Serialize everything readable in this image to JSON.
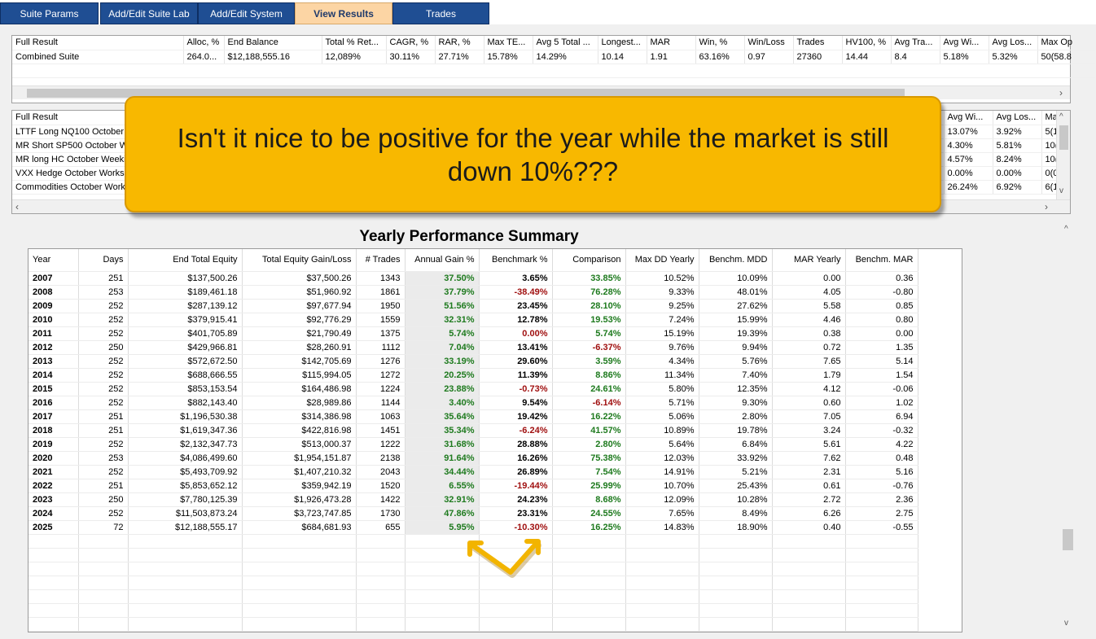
{
  "tabs": [
    "Suite Params",
    "Add/Edit Suite Lab",
    "Add/Edit System",
    "View Results",
    "Trades"
  ],
  "panel1": {
    "headers": [
      "Full Result",
      "Alloc, %",
      "End Balance",
      "Total % Ret...",
      "CAGR, %",
      "RAR, %",
      "Max TE...",
      "Avg 5 Total ...",
      "Longest...",
      "MAR",
      "Win, %",
      "Win/Loss",
      "Trades",
      "HV100, %",
      "Avg Tra...",
      "Avg Wi...",
      "Avg Los...",
      "Max Op"
    ],
    "row": [
      "Combined Suite",
      "264.0...",
      "$12,188,555.16",
      "12,089%",
      "30.11%",
      "27.71%",
      "15.78%",
      "14.29%",
      "10.14",
      "1.91",
      "63.16%",
      "0.97",
      "27360",
      "14.44",
      "8.4",
      "5.18%",
      "5.32%",
      "50(58.8"
    ]
  },
  "panel2": {
    "header_left": "Full Result",
    "header_right": [
      "Avg Wi...",
      "Avg Los...",
      "Ma"
    ],
    "rows": [
      {
        "name": "LTTF Long NQ100 October",
        "c1": "13.07%",
        "c2": "3.92%",
        "c3": "5(1("
      },
      {
        "name": "MR Short SP500 October W",
        "c1": "4.30%",
        "c2": "5.81%",
        "c3": "10("
      },
      {
        "name": "MR long HC October Weeki",
        "c1": "4.57%",
        "c2": "8.24%",
        "c3": "10("
      },
      {
        "name": "VXX Hedge October Works",
        "c1": "0.00%",
        "c2": "0.00%",
        "c3": "0(0"
      },
      {
        "name": "Commodities October Works",
        "c1": "26.24%",
        "c2": "6.92%",
        "c3": "6(1("
      }
    ]
  },
  "callout": {
    "text": "Isn't it nice to be positive for the year while the market is still down 10%???"
  },
  "yearly": {
    "title": "Yearly Performance Summary",
    "headers": [
      "Year",
      "Days",
      "End Total Equity",
      "Total Equity Gain/Loss",
      "# Trades",
      "Annual Gain %",
      "Benchmark %",
      "Comparison",
      "Max DD Yearly",
      "Benchm. MDD",
      "MAR Yearly",
      "Benchm. MAR"
    ],
    "rows": [
      [
        "2007",
        "251",
        "$137,500.26",
        "$37,500.26",
        "1343",
        "37.50%",
        "3.65%",
        "33.85%",
        "10.52%",
        "10.09%",
        "0.00",
        "0.36"
      ],
      [
        "2008",
        "253",
        "$189,461.18",
        "$51,960.92",
        "1861",
        "37.79%",
        "-38.49%",
        "76.28%",
        "9.33%",
        "48.01%",
        "4.05",
        "-0.80"
      ],
      [
        "2009",
        "252",
        "$287,139.12",
        "$97,677.94",
        "1950",
        "51.56%",
        "23.45%",
        "28.10%",
        "9.25%",
        "27.62%",
        "5.58",
        "0.85"
      ],
      [
        "2010",
        "252",
        "$379,915.41",
        "$92,776.29",
        "1559",
        "32.31%",
        "12.78%",
        "19.53%",
        "7.24%",
        "15.99%",
        "4.46",
        "0.80"
      ],
      [
        "2011",
        "252",
        "$401,705.89",
        "$21,790.49",
        "1375",
        "5.74%",
        "0.00%",
        "5.74%",
        "15.19%",
        "19.39%",
        "0.38",
        "0.00"
      ],
      [
        "2012",
        "250",
        "$429,966.81",
        "$28,260.91",
        "1112",
        "7.04%",
        "13.41%",
        "-6.37%",
        "9.76%",
        "9.94%",
        "0.72",
        "1.35"
      ],
      [
        "2013",
        "252",
        "$572,672.50",
        "$142,705.69",
        "1276",
        "33.19%",
        "29.60%",
        "3.59%",
        "4.34%",
        "5.76%",
        "7.65",
        "5.14"
      ],
      [
        "2014",
        "252",
        "$688,666.55",
        "$115,994.05",
        "1272",
        "20.25%",
        "11.39%",
        "8.86%",
        "11.34%",
        "7.40%",
        "1.79",
        "1.54"
      ],
      [
        "2015",
        "252",
        "$853,153.54",
        "$164,486.98",
        "1224",
        "23.88%",
        "-0.73%",
        "24.61%",
        "5.80%",
        "12.35%",
        "4.12",
        "-0.06"
      ],
      [
        "2016",
        "252",
        "$882,143.40",
        "$28,989.86",
        "1144",
        "3.40%",
        "9.54%",
        "-6.14%",
        "5.71%",
        "9.30%",
        "0.60",
        "1.02"
      ],
      [
        "2017",
        "251",
        "$1,196,530.38",
        "$314,386.98",
        "1063",
        "35.64%",
        "19.42%",
        "16.22%",
        "5.06%",
        "2.80%",
        "7.05",
        "6.94"
      ],
      [
        "2018",
        "251",
        "$1,619,347.36",
        "$422,816.98",
        "1451",
        "35.34%",
        "-6.24%",
        "41.57%",
        "10.89%",
        "19.78%",
        "3.24",
        "-0.32"
      ],
      [
        "2019",
        "252",
        "$2,132,347.73",
        "$513,000.37",
        "1222",
        "31.68%",
        "28.88%",
        "2.80%",
        "5.64%",
        "6.84%",
        "5.61",
        "4.22"
      ],
      [
        "2020",
        "253",
        "$4,086,499.60",
        "$1,954,151.87",
        "2138",
        "91.64%",
        "16.26%",
        "75.38%",
        "12.03%",
        "33.92%",
        "7.62",
        "0.48"
      ],
      [
        "2021",
        "252",
        "$5,493,709.92",
        "$1,407,210.32",
        "2043",
        "34.44%",
        "26.89%",
        "7.54%",
        "14.91%",
        "5.21%",
        "2.31",
        "5.16"
      ],
      [
        "2022",
        "251",
        "$5,853,652.12",
        "$359,942.19",
        "1520",
        "6.55%",
        "-19.44%",
        "25.99%",
        "10.70%",
        "25.43%",
        "0.61",
        "-0.76"
      ],
      [
        "2023",
        "250",
        "$7,780,125.39",
        "$1,926,473.28",
        "1422",
        "32.91%",
        "24.23%",
        "8.68%",
        "12.09%",
        "10.28%",
        "2.72",
        "2.36"
      ],
      [
        "2024",
        "252",
        "$11,503,873.24",
        "$3,723,747.85",
        "1730",
        "47.86%",
        "23.31%",
        "24.55%",
        "7.65%",
        "8.49%",
        "6.26",
        "2.75"
      ],
      [
        "2025",
        "72",
        "$12,188,555.17",
        "$684,681.93",
        "655",
        "5.95%",
        "-10.30%",
        "16.25%",
        "14.83%",
        "18.90%",
        "0.40",
        "-0.55"
      ]
    ]
  },
  "colors": {
    "tab_bg": "#1f4e93",
    "tab_active_bg": "#fcd5a4",
    "callout_bg": "#f8b800",
    "positive": "#1e7a1e",
    "negative": "#a01010",
    "arrow": "#f2b400"
  },
  "icons": {
    "scroll_left": "◀",
    "scroll_right": "›",
    "scroll_up": "^",
    "scroll_down": "v",
    "scroll_left_icon": "‹"
  }
}
